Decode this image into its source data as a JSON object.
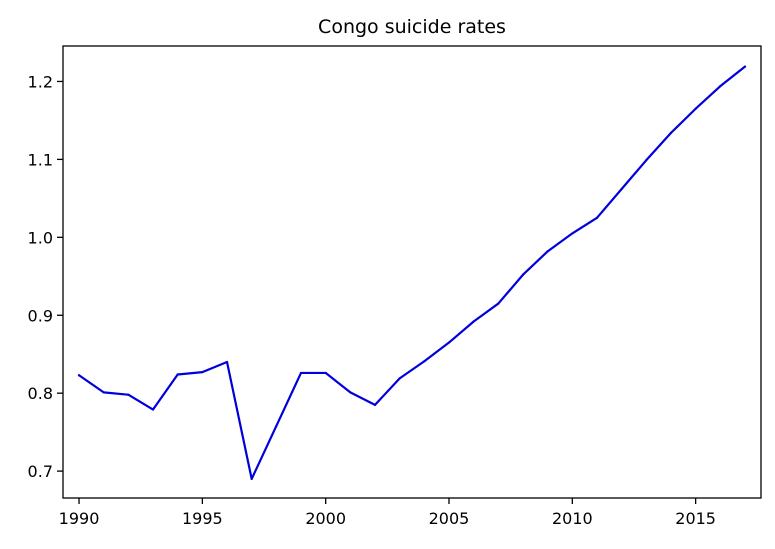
{
  "chart_data": {
    "type": "line",
    "title": "Congo suicide rates",
    "xlabel": "",
    "ylabel": "",
    "x": [
      1990,
      1991,
      1992,
      1993,
      1994,
      1995,
      1996,
      1997,
      1998,
      1999,
      2000,
      2001,
      2002,
      2003,
      2004,
      2005,
      2006,
      2007,
      2008,
      2009,
      2010,
      2011,
      2012,
      2013,
      2014,
      2015,
      2016,
      2017
    ],
    "series": [
      {
        "color": "#0000dd",
        "values": [
          0.823,
          0.801,
          0.798,
          0.779,
          0.824,
          0.827,
          0.84,
          0.69,
          0.758,
          0.826,
          0.826,
          0.801,
          0.785,
          0.819,
          0.841,
          0.865,
          0.892,
          0.915,
          0.952,
          0.982,
          1.005,
          1.025,
          1.062,
          1.099,
          1.134,
          1.165,
          1.194,
          1.219
        ]
      }
    ],
    "xlim": [
      1989.35,
      2017.65
    ],
    "ylim": [
      0.6655,
      1.2455
    ],
    "xticks": [
      1990,
      1995,
      2000,
      2005,
      2010,
      2015
    ],
    "yticks": [
      0.7,
      0.8,
      0.9,
      1.0,
      1.1,
      1.2
    ],
    "ytick_labels": [
      "0.7",
      "0.8",
      "0.9",
      "1.0",
      "1.1",
      "1.2"
    ],
    "grid": false,
    "legend": "none"
  }
}
